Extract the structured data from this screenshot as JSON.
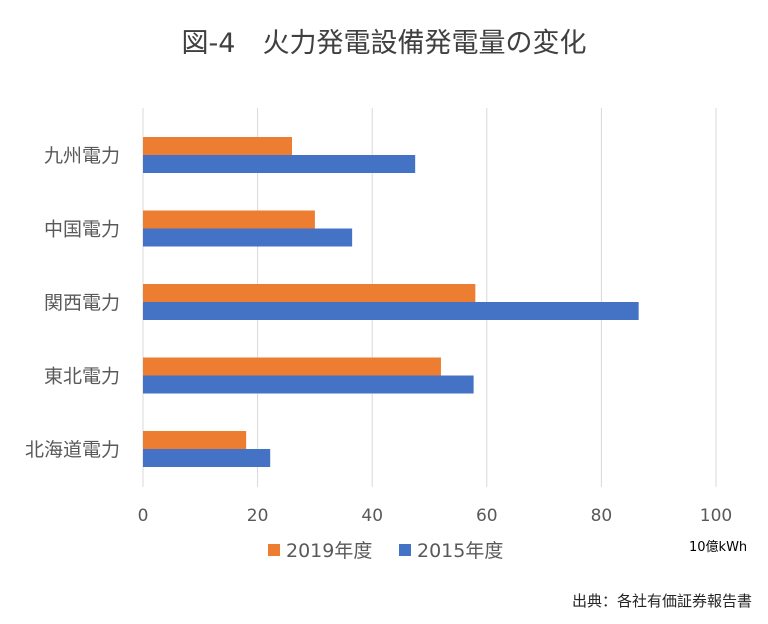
{
  "chart_data": {
    "type": "bar",
    "orientation": "horizontal",
    "title": "図-4　火力発電設備発電量の変化",
    "categories": [
      "九州電力",
      "中国電力",
      "関西電力",
      "東北電力",
      "北海道電力"
    ],
    "series": [
      {
        "name": "2019年度",
        "color": "#ED7D31",
        "values": [
          26,
          30,
          58,
          52,
          18
        ]
      },
      {
        "name": "2015年度",
        "color": "#4472C4",
        "values": [
          47.5,
          36.5,
          86.5,
          57.7,
          22.2
        ]
      }
    ],
    "xlim": [
      0,
      100
    ],
    "x_ticks": [
      0,
      20,
      40,
      60,
      80,
      100
    ],
    "unit_label": "10億kWh",
    "grid": true,
    "legend_position": "bottom",
    "source": "出典：各社有価証券報告書"
  }
}
